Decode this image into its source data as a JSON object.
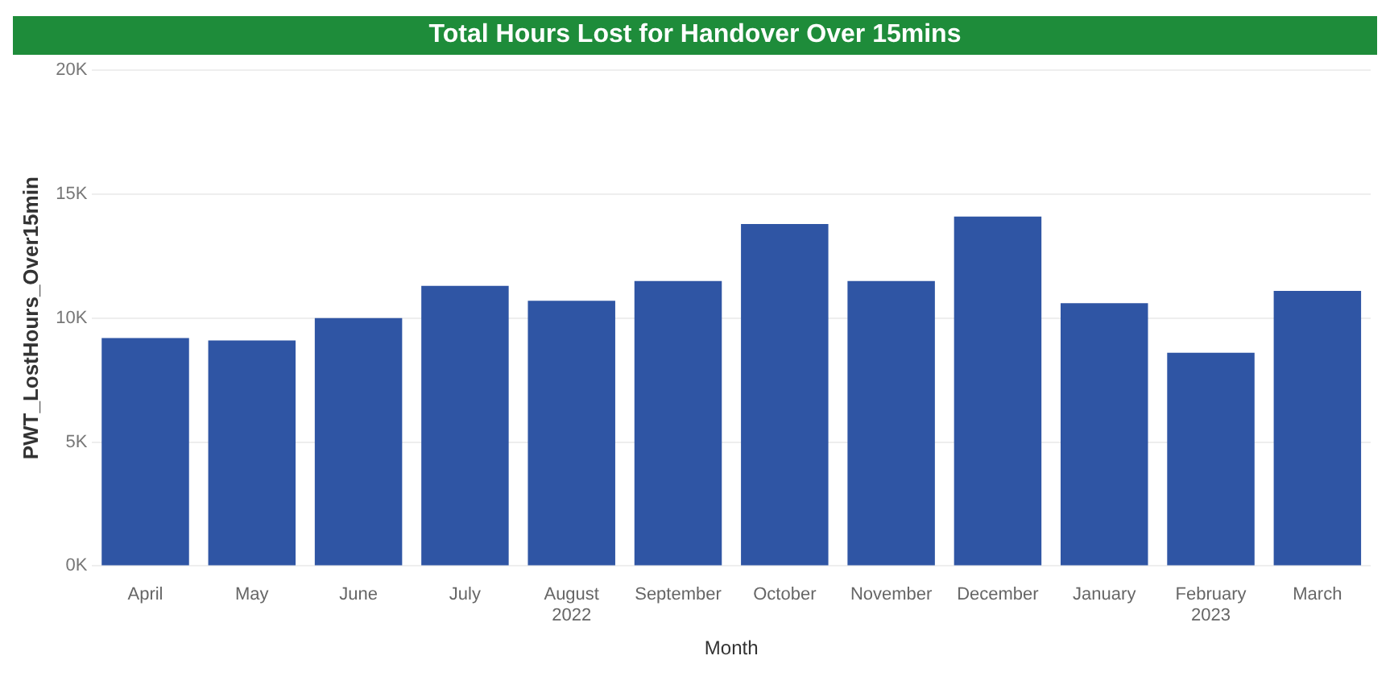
{
  "chart_data": {
    "type": "bar",
    "title": "Total Hours Lost for Handover Over 15mins",
    "xlabel": "Month",
    "ylabel": "PWT_LostHours_Over15min",
    "categories": [
      "April",
      "May",
      "June",
      "July",
      "August\n2022",
      "September",
      "October",
      "November",
      "December",
      "January",
      "February\n2023",
      "March"
    ],
    "values": [
      9200,
      9100,
      10000,
      11300,
      10700,
      11500,
      13800,
      11500,
      14100,
      10600,
      8600,
      11100
    ],
    "color": "#2f55a4",
    "ylim": [
      0,
      20000
    ],
    "yticks": [
      {
        "value": 0,
        "label": "0K"
      },
      {
        "value": 5000,
        "label": "5K"
      },
      {
        "value": 10000,
        "label": "10K"
      },
      {
        "value": 15000,
        "label": "15K"
      },
      {
        "value": 20000,
        "label": "20K"
      }
    ],
    "grid": "y"
  }
}
